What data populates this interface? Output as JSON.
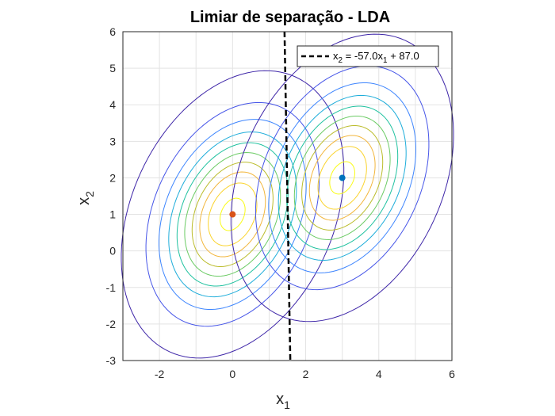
{
  "chart_data": {
    "type": "contour",
    "title": "Limiar de separação - LDA",
    "xlabel": {
      "base": "x",
      "sub": "1"
    },
    "ylabel": {
      "base": "x",
      "sub": "2"
    },
    "xlim": [
      -3,
      6
    ],
    "ylim": [
      -3,
      6
    ],
    "xticks": [
      "-2",
      "0",
      "2",
      "4",
      "6"
    ],
    "yticks": [
      "-3",
      "-2",
      "-1",
      "0",
      "1",
      "2",
      "3",
      "4",
      "5",
      "6"
    ],
    "grid": true,
    "legend": {
      "placement": "top-right",
      "entries": [
        {
          "parts": [
            "x",
            "2",
            " = -57.0x",
            "1",
            " + 87.0"
          ],
          "style": "dashed",
          "color": "#000000"
        }
      ]
    },
    "boundary": {
      "slope": -57.0,
      "intercept": 87.0,
      "color": "#000000",
      "style": "dashed"
    },
    "distributions": [
      {
        "mean": [
          0,
          1
        ],
        "marker_color": "#D95319",
        "sigma": [
          1.2,
          1.55
        ],
        "rho": 0.3
      },
      {
        "mean": [
          3,
          2
        ],
        "marker_color": "#0072BD",
        "sigma": [
          1.2,
          1.55
        ],
        "rho": 0.3
      }
    ],
    "contour_levels": 10,
    "contour_colormap": [
      "#3E26A8",
      "#4655E8",
      "#3D85FE",
      "#1EADDA",
      "#21C2A0",
      "#6BCB64",
      "#BBBC2B",
      "#F2B63C",
      "#FAD32C",
      "#F9FB15"
    ]
  }
}
